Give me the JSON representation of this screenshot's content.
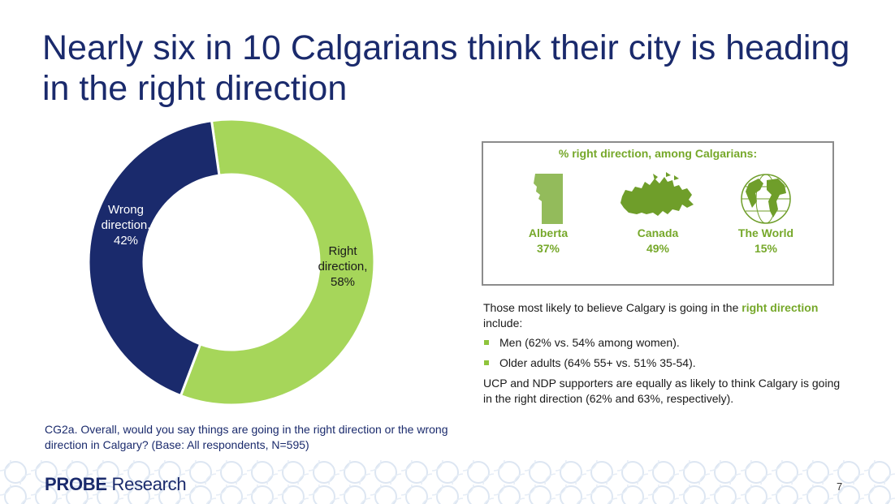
{
  "slide": {
    "title": "Nearly six in 10 Calgarians think their city is heading in the right direction",
    "page_number": "7"
  },
  "chart_data": {
    "type": "pie",
    "variant": "donut",
    "slices": [
      {
        "label_line1": "Wrong",
        "label_line2": "direction,",
        "value_text": "42%",
        "value": 42,
        "color": "#1a2a6c"
      },
      {
        "label_line1": "Right",
        "label_line2": "direction,",
        "value_text": "58%",
        "value": 58,
        "color": "#a6d65a"
      }
    ],
    "legend": "none"
  },
  "callout": {
    "title": "% right direction, among Calgarians:",
    "regions": [
      {
        "name": "Alberta",
        "value": "37%",
        "icon": "alberta-map-icon"
      },
      {
        "name": "Canada",
        "value": "49%",
        "icon": "canada-map-icon"
      },
      {
        "name": "The World",
        "value": "15%",
        "icon": "globe-icon"
      }
    ]
  },
  "notes": {
    "intro_before": "Those most likely to believe Calgary is going in the ",
    "intro_highlight": "right direction",
    "intro_after": " include:",
    "bullets": [
      "Men (62% vs. 54% among women).",
      "Older adults (64% 55+ vs. 51% 35-54)."
    ],
    "closing": "UCP and NDP supporters are equally as likely to think Calgary is going in the right direction (62% and 63%, respectively)."
  },
  "question": "CG2a. Overall, would you say things are going in the right direction or the wrong direction in Calgary? (Base: All respondents, N=595)",
  "footer": {
    "logo_part1": "PROBE",
    "logo_part2": " Research"
  },
  "colors": {
    "navy": "#1a2a6c",
    "green": "#a6d65a",
    "accent_green": "#76a82a"
  }
}
